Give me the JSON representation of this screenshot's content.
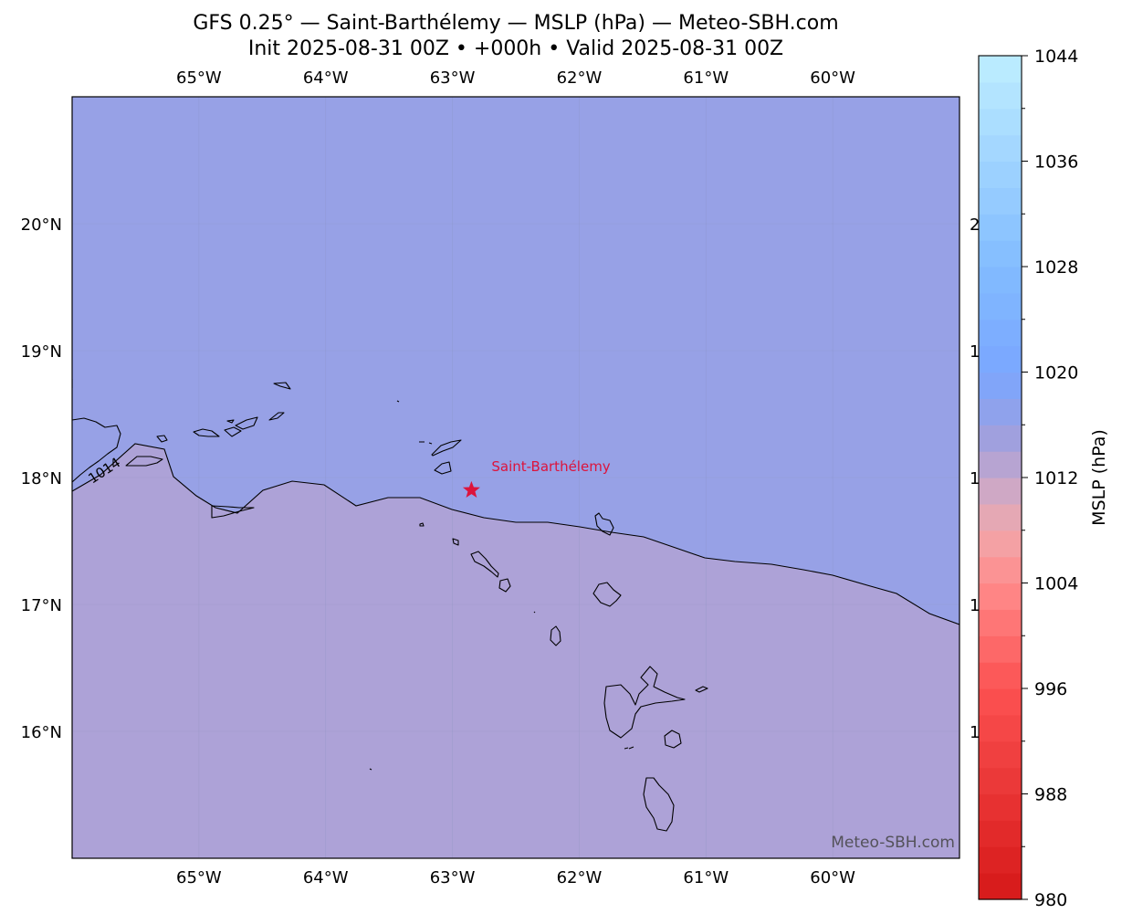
{
  "title": {
    "line1": "GFS 0.25° — Saint-Barthélemy — MSLP (hPa) — Meteo-SBH.com",
    "line2": "Init 2025-08-31 00Z • +000h • Valid 2025-08-31 00Z"
  },
  "map": {
    "lon_range": [
      -66.0,
      -59.0
    ],
    "lat_range": [
      15.0,
      21.0
    ],
    "lon_ticks": [
      {
        "value": -65,
        "label": "65°W"
      },
      {
        "value": -64,
        "label": "64°W"
      },
      {
        "value": -63,
        "label": "63°W"
      },
      {
        "value": -62,
        "label": "62°W"
      },
      {
        "value": -61,
        "label": "61°W"
      },
      {
        "value": -60,
        "label": "60°W"
      }
    ],
    "lat_ticks": [
      {
        "value": 20,
        "label": "20°N"
      },
      {
        "value": 19,
        "label": "19°N"
      },
      {
        "value": 18,
        "label": "18°N"
      },
      {
        "value": 17,
        "label": "17°N"
      },
      {
        "value": 16,
        "label": "16°N"
      }
    ],
    "fill_high_color": "#97a1e6",
    "fill_low_color": "#ada2d7",
    "contour_label": "1014",
    "location": {
      "name": "Saint-Barthélemy",
      "lon": -62.85,
      "lat": 17.9,
      "color": "#dc143c"
    },
    "watermark": "Meteo-SBH.com"
  },
  "colorbar": {
    "label": "MSLP (hPa)",
    "min": 980,
    "max": 1044,
    "step": 2,
    "ticks": [
      "1044",
      "1036",
      "1028",
      "1020",
      "1012",
      "1004",
      "996",
      "988",
      "980"
    ]
  }
}
